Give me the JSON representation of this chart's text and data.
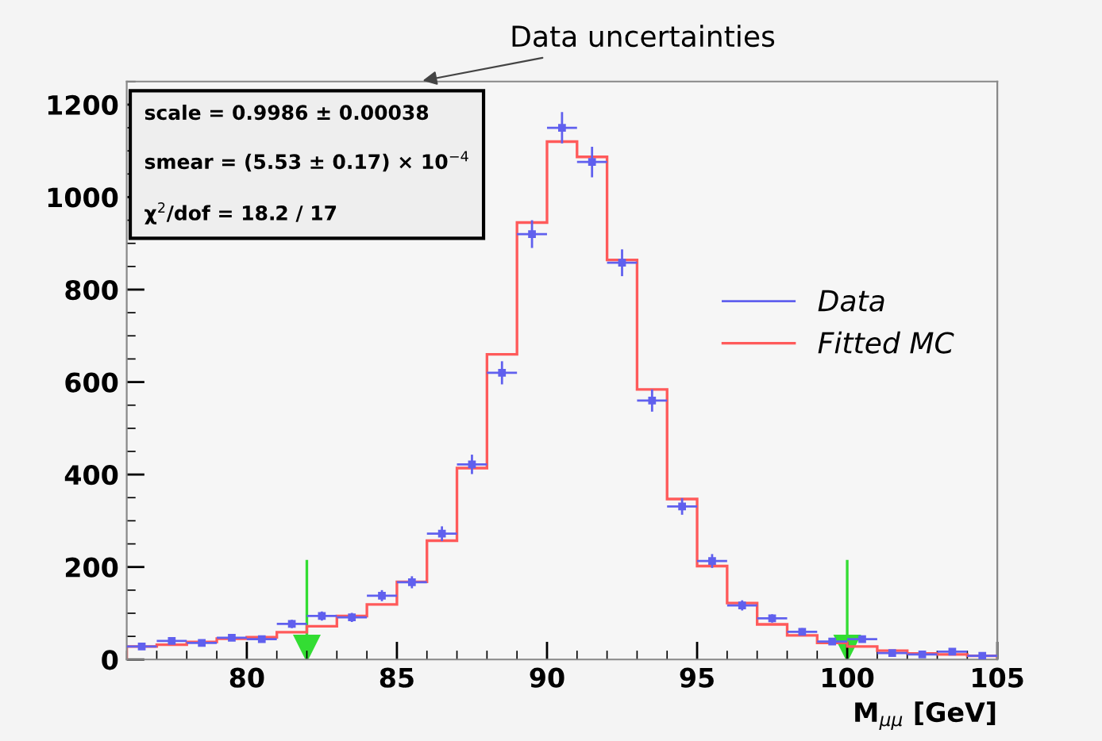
{
  "chart_data": {
    "type": "histogram",
    "xlabel": "M$_{μμ}$ [GeV]",
    "bins": [
      76,
      77,
      78,
      79,
      80,
      81,
      82,
      83,
      84,
      85,
      86,
      87,
      88,
      89,
      90,
      91,
      92,
      93,
      94,
      95,
      96,
      97,
      98,
      99,
      100,
      101,
      102,
      103,
      104,
      105
    ],
    "series": [
      {
        "name": "Data",
        "type": "scatter",
        "color": "#6060ee",
        "marker": "square",
        "x": [
          76.5,
          77.5,
          78.5,
          79.5,
          80.5,
          81.5,
          82.5,
          83.5,
          84.5,
          85.5,
          86.5,
          87.5,
          88.5,
          89.5,
          90.5,
          91.5,
          92.5,
          93.5,
          94.5,
          95.5,
          96.5,
          97.5,
          98.5,
          99.5,
          100.5,
          101.5,
          102.5,
          103.5,
          104.5
        ],
        "values": [
          28,
          40,
          36,
          47,
          44,
          77,
          94,
          91,
          138,
          167,
          272,
          422,
          620,
          920,
          1150,
          1076,
          858,
          560,
          331,
          213,
          117,
          89,
          60,
          39,
          44,
          14,
          11,
          17,
          8
        ],
        "errors": [
          5,
          6,
          6,
          7,
          7,
          9,
          10,
          10,
          12,
          13,
          16,
          21,
          25,
          30,
          34,
          33,
          29,
          24,
          18,
          15,
          11,
          9,
          8,
          6,
          7,
          4,
          3,
          4,
          3
        ],
        "xerrors": [
          0.5,
          0.5,
          0.5,
          0.5,
          0.5,
          0.5,
          0.5,
          0.5,
          0.5,
          0.5,
          0.5,
          0.5,
          0.5,
          0.5,
          0.5,
          0.5,
          0.5,
          0.5,
          0.5,
          0.5,
          0.5,
          0.5,
          0.5,
          0.5,
          0.5,
          0.5,
          0.5,
          0.5,
          0.5
        ]
      },
      {
        "name": "Fitted MC",
        "type": "histogram",
        "color": "#ff5a5a",
        "values": [
          28,
          32,
          38,
          45,
          48,
          59,
          72,
          94,
          119,
          168,
          257,
          414,
          660,
          945,
          1120,
          1087,
          864,
          584,
          347,
          202,
          122,
          76,
          52,
          36,
          28,
          19,
          13,
          11,
          8
        ]
      }
    ],
    "xlim": [
      76,
      105
    ],
    "xticks": [
      80,
      85,
      90,
      95,
      100,
      105
    ],
    "ylim": [
      0,
      1250
    ],
    "yticks": [
      0,
      200,
      400,
      600,
      800,
      1000,
      1200
    ],
    "ref_lines": [
      {
        "axis": "x",
        "value": 82,
        "color": "#33dd33"
      },
      {
        "axis": "x",
        "value": 100,
        "color": "#33dd33"
      }
    ],
    "annotations": [
      "scale = 0.9986 ± 0.00038",
      "smear = (5.53 ± 0.17) × 10$^{−4}$",
      "χ$^{2}$/dof = 18.2 / 17",
      "Data uncertainties"
    ],
    "legend": "right",
    "grid": false
  }
}
